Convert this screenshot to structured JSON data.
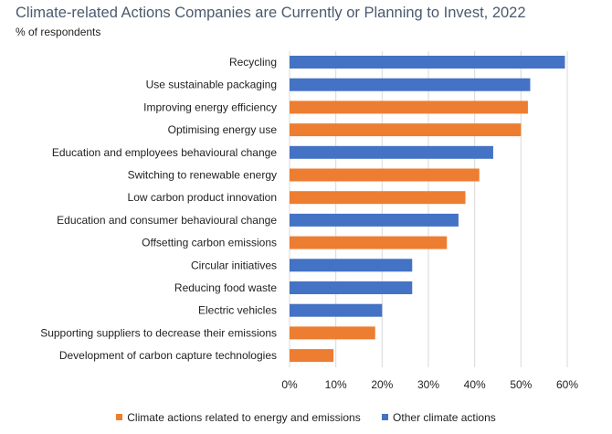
{
  "colors": {
    "energy": "#ED7D31",
    "other": "#4472C4",
    "title": "#4a5a6e",
    "grid": "#d9d9d9",
    "text": "#222222"
  },
  "chart_data": {
    "type": "bar",
    "orientation": "horizontal",
    "title": "Climate-related Actions Companies are Currently or Planning to Invest, 2022",
    "subtitle": "% of respondents",
    "xlim": [
      0,
      60
    ],
    "x_ticks": [
      "0%",
      "10%",
      "20%",
      "30%",
      "40%",
      "50%",
      "60%"
    ],
    "grid": "vertical",
    "legend_position": "bottom",
    "legend": [
      {
        "key": "energy",
        "label": "Climate actions related to energy and emissions"
      },
      {
        "key": "other",
        "label": "Other climate actions"
      }
    ],
    "bars": [
      {
        "label": "Recycling",
        "value": 59.5,
        "group": "other"
      },
      {
        "label": "Use sustainable packaging",
        "value": 52,
        "group": "other"
      },
      {
        "label": "Improving energy efficiency",
        "value": 51.5,
        "group": "energy"
      },
      {
        "label": "Optimising energy use",
        "value": 50,
        "group": "energy"
      },
      {
        "label": "Education and employees behavioural change",
        "value": 44,
        "group": "other"
      },
      {
        "label": "Switching to renewable energy",
        "value": 41,
        "group": "energy"
      },
      {
        "label": "Low carbon product innovation",
        "value": 38,
        "group": "energy"
      },
      {
        "label": "Education and consumer behavioural change",
        "value": 36.5,
        "group": "other"
      },
      {
        "label": "Offsetting carbon emissions",
        "value": 34,
        "group": "energy"
      },
      {
        "label": "Circular initiatives",
        "value": 26.5,
        "group": "other"
      },
      {
        "label": "Reducing food waste",
        "value": 26.5,
        "group": "other"
      },
      {
        "label": "Electric vehicles",
        "value": 20,
        "group": "other"
      },
      {
        "label": "Supporting suppliers to decrease their emissions",
        "value": 18.5,
        "group": "energy"
      },
      {
        "label": "Development of carbon capture technologies",
        "value": 9.5,
        "group": "energy"
      }
    ]
  }
}
